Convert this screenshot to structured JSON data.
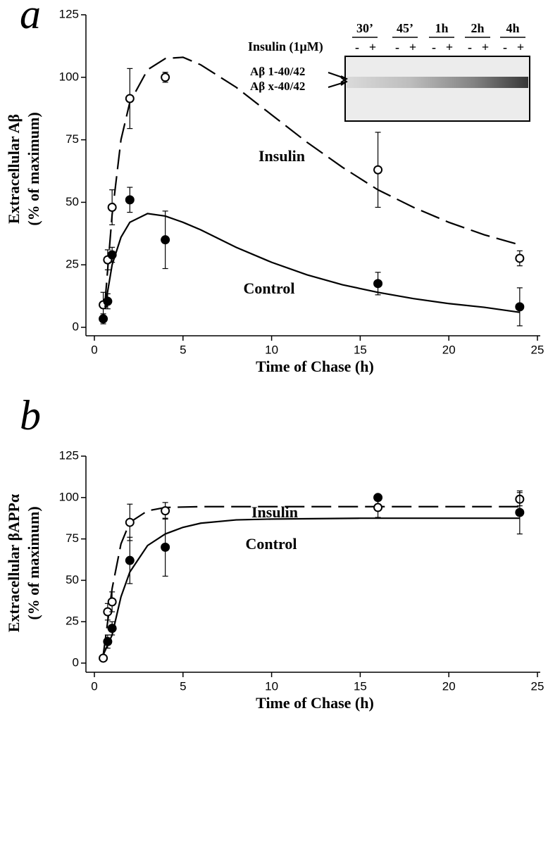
{
  "chart_data": [
    {
      "type": "scatter",
      "panel_label": "a",
      "y_label": [
        "Extracellular Aβ",
        "(% of maximum)"
      ],
      "x_label": "Time of Chase (h)",
      "xlim": [
        0,
        25
      ],
      "xticks": [
        0,
        5,
        10,
        15,
        20,
        25
      ],
      "ylim": [
        0,
        125
      ],
      "yticks": [
        0,
        25,
        50,
        75,
        100,
        125
      ],
      "series": [
        {
          "name": "Insulin",
          "marker": "open",
          "line": "dashed",
          "color": "#000000",
          "x": [
            0.5,
            0.75,
            1,
            2,
            4,
            16,
            24
          ],
          "values": [
            9,
            27,
            48,
            91.5,
            100,
            63,
            27.6
          ],
          "errors": [
            5,
            4,
            7,
            12,
            2,
            15,
            3
          ],
          "curve": {
            "x": [
              0.6,
              1,
              1.5,
              2,
              3,
              4,
              5,
              6,
              8,
              10,
              12,
              14,
              16,
              18,
              20,
              22,
              24
            ],
            "values": [
              10,
              45,
              75,
              90,
              103,
              107.5,
              108,
              105,
              96,
              85,
              74,
              64,
              55,
              48,
              42,
              37,
              33
            ]
          }
        },
        {
          "name": "Control",
          "marker": "filled",
          "line": "solid",
          "color": "#000000",
          "x": [
            0.5,
            0.75,
            1,
            2,
            4,
            16,
            24
          ],
          "values": [
            3.4,
            10.4,
            29,
            51,
            35,
            17.5,
            8.2
          ],
          "errors": [
            2,
            3,
            3,
            5,
            11.5,
            4.5,
            7.6
          ],
          "curve": {
            "x": [
              0.6,
              1,
              1.5,
              2,
              3,
              4,
              5,
              6,
              8,
              10,
              12,
              14,
              16,
              18,
              20,
              22,
              24
            ],
            "values": [
              8,
              25,
              36,
              42,
              45.5,
              44.5,
              42,
              39,
              32,
              26,
              21,
              17,
              14,
              11.5,
              9.5,
              8,
              6
            ]
          }
        }
      ],
      "inset": {
        "lanes": [
          "30’",
          "45’",
          "1h",
          "2h",
          "4h"
        ],
        "treatment": "Insulin (1μM)",
        "signs": [
          "-",
          "+"
        ],
        "bands": [
          "Aβ 1-40/42",
          "Aβ x-40/42"
        ]
      }
    },
    {
      "type": "scatter",
      "panel_label": "b",
      "y_label": [
        "Extracellular βAPPα",
        "(% of maximum)"
      ],
      "x_label": "Time of Chase (h)",
      "xlim": [
        0,
        25
      ],
      "xticks": [
        0,
        5,
        10,
        15,
        20,
        25
      ],
      "ylim": [
        0,
        125
      ],
      "yticks": [
        0,
        25,
        50,
        75,
        100,
        125
      ],
      "series": [
        {
          "name": "Insulin",
          "marker": "open",
          "line": "dashed",
          "color": "#000000",
          "x": [
            0.5,
            0.75,
            1,
            2,
            4,
            16,
            24
          ],
          "values": [
            3,
            31,
            37,
            85,
            92,
            94,
            99
          ],
          "errors": [
            1,
            5,
            6,
            11,
            5,
            6,
            4
          ],
          "curve": {
            "x": [
              0.5,
              1,
              1.5,
              2,
              3,
              4,
              6,
              10,
              24
            ],
            "values": [
              5,
              45,
              72,
              85,
              92,
              94,
              94.5,
              94.5,
              94.5
            ]
          }
        },
        {
          "name": "Control",
          "marker": "filled",
          "line": "solid",
          "color": "#000000",
          "x": [
            0.75,
            1,
            2,
            4,
            16,
            24
          ],
          "values": [
            13,
            21,
            62,
            70,
            100,
            91
          ],
          "errors": [
            4,
            4,
            14,
            17.5,
            1,
            13
          ],
          "curve": {
            "x": [
              0.5,
              1,
              1.5,
              2,
              3,
              4,
              5,
              6,
              8,
              10,
              15,
              24
            ],
            "values": [
              5,
              17,
              40,
              55,
              71,
              78,
              82,
              84.5,
              86.5,
              87,
              87.5,
              87.5
            ]
          }
        }
      ]
    }
  ]
}
